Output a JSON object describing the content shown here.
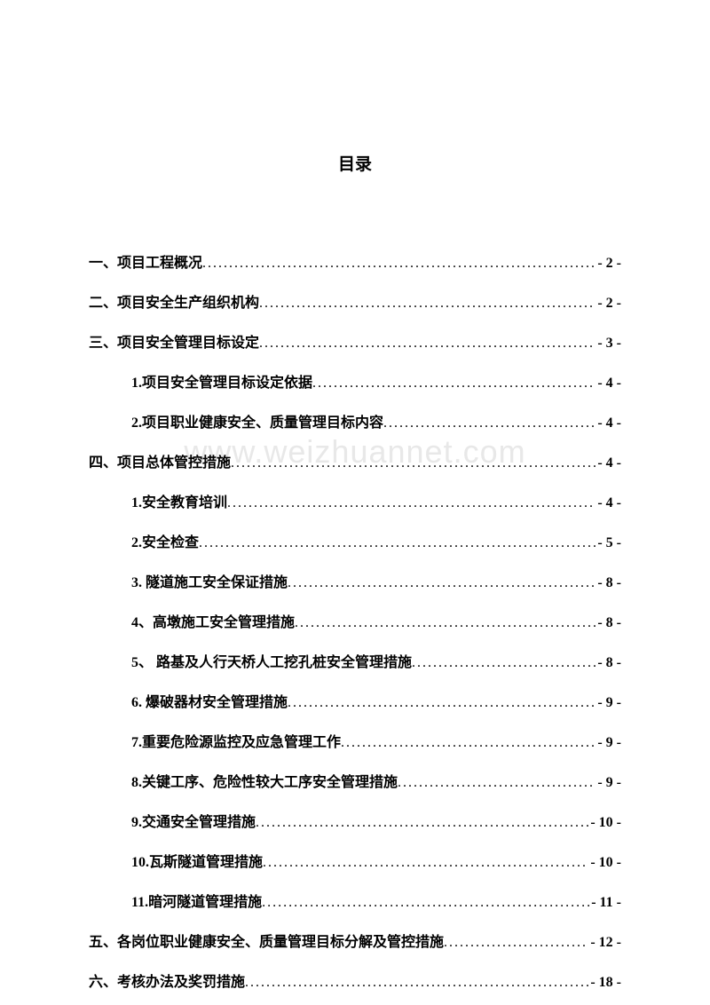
{
  "title": "目录",
  "watermark": "www.weizhuannet.com",
  "entries": [
    {
      "label": "一、项目工程概况 ",
      "page": "- 2 -",
      "indent": 0
    },
    {
      "label": "二、项目安全生产组织机构 ",
      "page": "- 2 -",
      "indent": 0
    },
    {
      "label": "三、项目安全管理目标设定 ",
      "page": "- 3 -",
      "indent": 0
    },
    {
      "label": "1.项目安全管理目标设定依据",
      "page": "- 4 -",
      "indent": 1
    },
    {
      "label": "2.项目职业健康安全、质量管理目标内容",
      "page": "- 4 -",
      "indent": 1
    },
    {
      "label": "四、项目总体管控措施 ",
      "page": "- 4 -",
      "indent": 0
    },
    {
      "label": "1.安全教育培训",
      "page": "- 4 -",
      "indent": 1
    },
    {
      "label": "2.安全检查",
      "page": "- 5 -",
      "indent": 1
    },
    {
      "label": "3.  隧道施工安全保证措施",
      "page": "- 8 -",
      "indent": 1
    },
    {
      "label": "4、高墩施工安全管理措施",
      "page": "- 8 -",
      "indent": 1
    },
    {
      "label": "5、  路基及人行天桥人工挖孔桩安全管理措施",
      "page": "- 8 -",
      "indent": 1
    },
    {
      "label": "6.  爆破器材安全管理措施",
      "page": "- 9 -",
      "indent": 1
    },
    {
      "label": "7.重要危险源监控及应急管理工作 ",
      "page": "- 9 -",
      "indent": 1
    },
    {
      "label": "8.关键工序、危险性较大工序安全管理措施",
      "page": "- 9 -",
      "indent": 1
    },
    {
      "label": "9.交通安全管理措施",
      "page": "- 10 -",
      "indent": 1
    },
    {
      "label": "10.瓦斯隧道管理措施",
      "page": "- 10 -",
      "indent": 1
    },
    {
      "label": "11.暗河隧道管理措施",
      "page": "- 11 -",
      "indent": 1
    },
    {
      "label": "五、各岗位职业健康安全、质量管理目标分解及管控措施 ",
      "page": "- 12 -",
      "indent": 0
    },
    {
      "label": "六、考核办法及奖罚措施 ",
      "page": "- 18 -",
      "indent": 0
    }
  ]
}
